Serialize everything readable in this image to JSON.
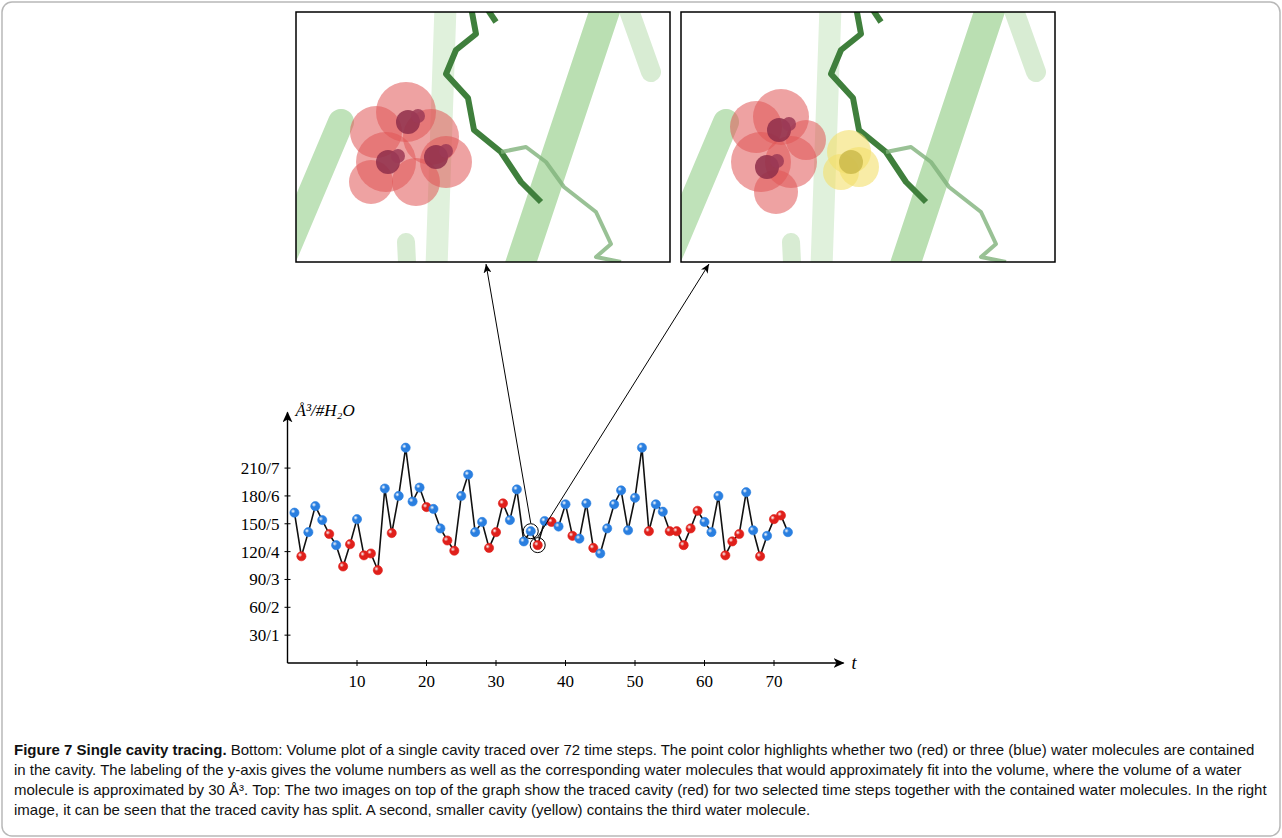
{
  "chart_data": {
    "type": "line",
    "x": [
      1,
      2,
      3,
      4,
      5,
      6,
      7,
      8,
      9,
      10,
      11,
      12,
      13,
      14,
      15,
      16,
      17,
      18,
      19,
      20,
      21,
      22,
      23,
      24,
      25,
      26,
      27,
      28,
      29,
      30,
      31,
      32,
      33,
      34,
      35,
      36,
      37,
      38,
      39,
      40,
      41,
      42,
      43,
      44,
      45,
      46,
      47,
      48,
      49,
      50,
      51,
      52,
      53,
      54,
      55,
      56,
      57,
      58,
      59,
      60,
      61,
      62,
      63,
      64,
      65,
      66,
      67,
      68,
      69,
      70,
      71,
      72
    ],
    "values": [
      162,
      115,
      141,
      169,
      154,
      139,
      127,
      104,
      128,
      155,
      116,
      118,
      100,
      188,
      140,
      180,
      232,
      174,
      189,
      168,
      166,
      145,
      132,
      121,
      180,
      203,
      141,
      152,
      124,
      141,
      172,
      154,
      187,
      131,
      142,
      127,
      153,
      152,
      147,
      171,
      137,
      134,
      172,
      124,
      118,
      145,
      171,
      186,
      143,
      178,
      232,
      142,
      171,
      163,
      142,
      142,
      127,
      145,
      164,
      152,
      141,
      180,
      116,
      131,
      139,
      184,
      143,
      115,
      137,
      155,
      159,
      141
    ],
    "colors": [
      "#2a7fe0",
      "#e0201b",
      "#2a7fe0",
      "#2a7fe0",
      "#2a7fe0",
      "#e0201b",
      "#2a7fe0",
      "#e0201b",
      "#e0201b",
      "#2a7fe0",
      "#e0201b",
      "#e0201b",
      "#e0201b",
      "#2a7fe0",
      "#e0201b",
      "#2a7fe0",
      "#2a7fe0",
      "#2a7fe0",
      "#2a7fe0",
      "#e0201b",
      "#2a7fe0",
      "#2a7fe0",
      "#e0201b",
      "#e0201b",
      "#2a7fe0",
      "#2a7fe0",
      "#2a7fe0",
      "#2a7fe0",
      "#e0201b",
      "#e0201b",
      "#e0201b",
      "#2a7fe0",
      "#2a7fe0",
      "#2a7fe0",
      "#2a7fe0",
      "#e0201b",
      "#2a7fe0",
      "#e0201b",
      "#2a7fe0",
      "#2a7fe0",
      "#e0201b",
      "#2a7fe0",
      "#2a7fe0",
      "#e0201b",
      "#2a7fe0",
      "#2a7fe0",
      "#2a7fe0",
      "#2a7fe0",
      "#2a7fe0",
      "#2a7fe0",
      "#2a7fe0",
      "#e0201b",
      "#2a7fe0",
      "#2a7fe0",
      "#e0201b",
      "#e0201b",
      "#e0201b",
      "#e0201b",
      "#e0201b",
      "#2a7fe0",
      "#2a7fe0",
      "#2a7fe0",
      "#e0201b",
      "#e0201b",
      "#e0201b",
      "#2a7fe0",
      "#2a7fe0",
      "#e0201b",
      "#2a7fe0",
      "#e0201b",
      "#e0201b",
      "#2a7fe0"
    ],
    "color": "#111111",
    "marker": "circle",
    "xlim": [
      0,
      80
    ],
    "xticks": [
      10,
      20,
      30,
      40,
      50,
      60,
      70
    ],
    "ylim": [
      0,
      270
    ],
    "yticks": [
      {
        "value": 30,
        "label": "30/1"
      },
      {
        "value": 60,
        "label": "60/2"
      },
      {
        "value": 90,
        "label": "90/3"
      },
      {
        "value": 120,
        "label": "120/4"
      },
      {
        "value": 150,
        "label": "150/5"
      },
      {
        "value": 180,
        "label": "180/6"
      },
      {
        "value": 210,
        "label": "210/7"
      }
    ],
    "x_label": "t",
    "y_label": "Å³/#H₂O",
    "grid": false,
    "highlighted_x": [
      35,
      36
    ]
  },
  "caption": {
    "title": "Figure 7 Single cavity tracing.",
    "text": "Bottom: Volume plot of a single cavity traced over 72 time steps. The point color highlights whether two (red) or three (blue) water molecules are contained in the cavity. The labeling of the y-axis gives the volume numbers as well as the corresponding water molecules that would approximately fit into the volume, where the volume of a water molecule is approximated by 30 Å³. Top: The two images on top of the graph show the traced cavity (red) for two selected time steps together with the contained water molecules. In the right image, it can be seen that the traced cavity has split. A second, smaller cavity (yellow) contains the third water molecule."
  }
}
